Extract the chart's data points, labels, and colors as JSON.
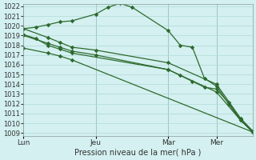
{
  "title": "Pression niveau de la mer( hPa )",
  "bg_color": "#d4f0f0",
  "plot_bg": "#d4f0f0",
  "grid_color": "#b0d8d8",
  "line_color": "#2d6a2d",
  "vline_color": "#7aa0a0",
  "ylim": [
    1009,
    1022
  ],
  "yticks": [
    1009,
    1010,
    1011,
    1012,
    1013,
    1014,
    1015,
    1016,
    1017,
    1018,
    1019,
    1020,
    1021,
    1022
  ],
  "xtick_labels": [
    "Lun",
    "Jeu",
    "Mar",
    "Mer"
  ],
  "xtick_positions": [
    0,
    18,
    36,
    48
  ],
  "xlim": [
    0,
    57
  ],
  "series1": {
    "x": [
      0,
      3,
      6,
      9,
      12,
      18,
      21,
      24,
      27,
      36,
      39,
      42,
      45,
      48,
      51,
      54,
      57
    ],
    "y": [
      1019.7,
      1019.85,
      1020.1,
      1020.4,
      1020.5,
      1021.2,
      1021.9,
      1022.3,
      1021.9,
      1019.5,
      1018.0,
      1017.8,
      1014.6,
      1013.8,
      1012.0,
      1010.3,
      1009.1
    ]
  },
  "series2": {
    "x": [
      0,
      6,
      9,
      12,
      18,
      36,
      48,
      54,
      57
    ],
    "y": [
      1019.7,
      1018.8,
      1018.3,
      1017.8,
      1017.5,
      1016.2,
      1014.0,
      1010.5,
      1009.2
    ]
  },
  "series3": {
    "x": [
      0,
      6,
      9,
      12,
      18,
      36,
      48,
      54,
      57
    ],
    "y": [
      1019.0,
      1018.2,
      1017.8,
      1017.4,
      1017.0,
      1015.5,
      1013.2,
      1010.3,
      1009.1
    ]
  },
  "series4": {
    "x": [
      0,
      6,
      9,
      12,
      57
    ],
    "y": [
      1017.7,
      1017.2,
      1016.9,
      1016.5,
      1009.1
    ]
  },
  "series5": {
    "x": [
      0,
      3,
      6,
      9,
      12,
      36,
      39,
      42,
      45,
      48,
      51,
      54,
      57
    ],
    "y": [
      1019.1,
      1018.7,
      1018.0,
      1017.6,
      1017.2,
      1015.5,
      1014.9,
      1014.3,
      1013.7,
      1013.5,
      1012.1,
      1010.4,
      1009.2
    ]
  }
}
